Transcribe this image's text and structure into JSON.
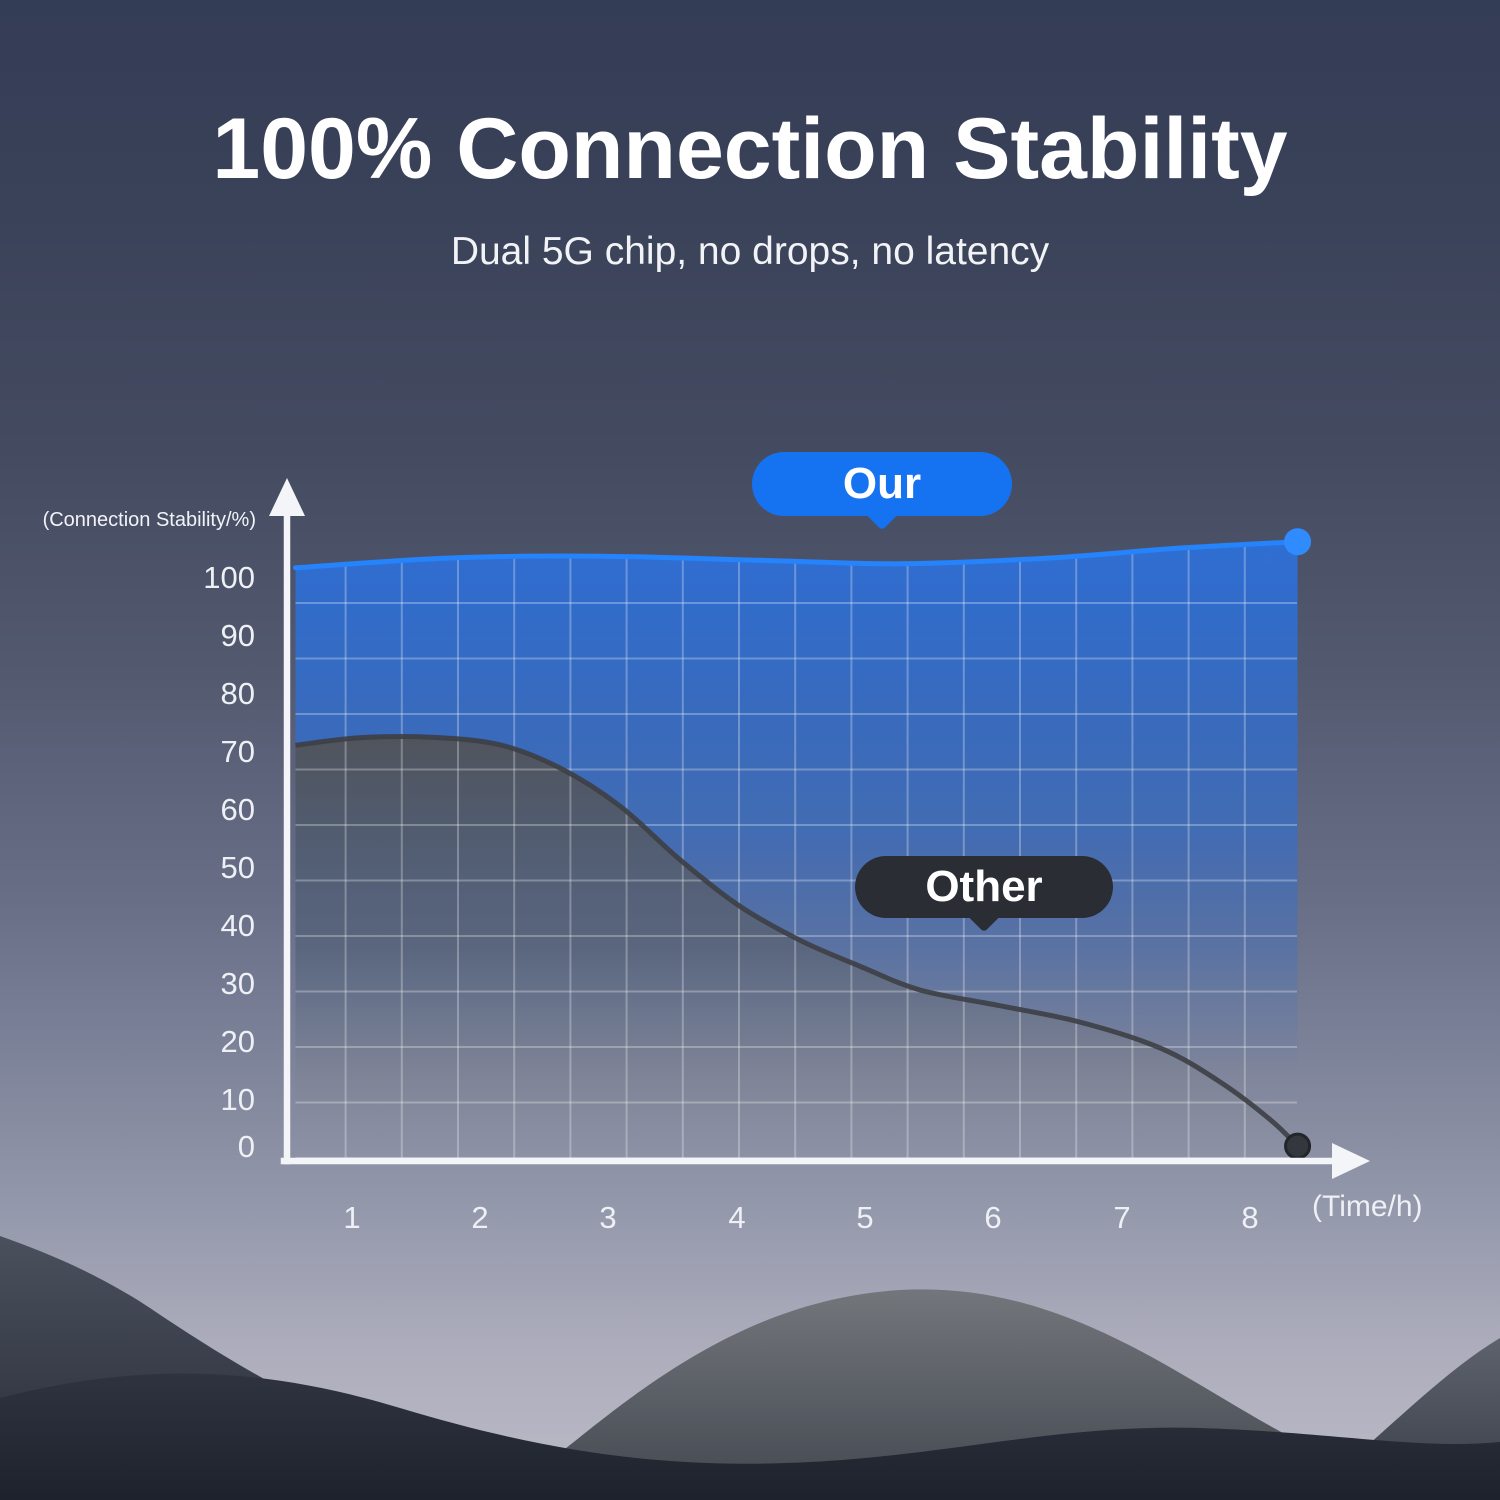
{
  "header": {
    "title": "100% Connection Stability",
    "subtitle": "Dual 5G chip, no drops, no latency"
  },
  "chart_data": {
    "type": "area",
    "title": "100% Connection Stability",
    "xlabel": "(Time/h)",
    "ylabel": "(Connection Stability/%)",
    "x_ticks": [
      "1",
      "2",
      "3",
      "4",
      "5",
      "6",
      "7",
      "8"
    ],
    "y_ticks": [
      "100",
      "90",
      "80",
      "70",
      "60",
      "50",
      "40",
      "30",
      "20",
      "10",
      "0"
    ],
    "xlim": [
      0.55,
      8.75
    ],
    "ylim": [
      0,
      112
    ],
    "grid": true,
    "grid_color": "#ffffff",
    "axis_color": "#f4f5f8",
    "series": [
      {
        "name": "Our",
        "line_color": "#2583fb",
        "fill_color": "#2e6fd6",
        "marker_color": "#2f8bfe",
        "points": [
          [
            0.56,
            102.1
          ],
          [
            1.76,
            103.8
          ],
          [
            2.93,
            104.1
          ],
          [
            4.18,
            103.4
          ],
          [
            5.27,
            102.8
          ],
          [
            6.44,
            103.8
          ],
          [
            7.45,
            105.5
          ],
          [
            8.37,
            106.6
          ]
        ]
      },
      {
        "name": "Other",
        "line_color": "#3d3f45",
        "fill_color": "#515359",
        "marker_color": "#34373d",
        "points": [
          [
            0.56,
            71.5
          ],
          [
            1.06,
            72.8
          ],
          [
            1.61,
            72.9
          ],
          [
            2.15,
            71.6
          ],
          [
            2.62,
            67.6
          ],
          [
            3.09,
            61.0
          ],
          [
            3.56,
            51.7
          ],
          [
            4.02,
            43.8
          ],
          [
            4.49,
            37.9
          ],
          [
            4.96,
            33.4
          ],
          [
            5.43,
            29.3
          ],
          [
            6.05,
            26.6
          ],
          [
            6.67,
            23.8
          ],
          [
            7.3,
            19.3
          ],
          [
            7.77,
            13.4
          ],
          [
            8.16,
            6.9
          ],
          [
            8.37,
            2.4
          ]
        ]
      }
    ],
    "legend_badges": [
      {
        "label": "Our",
        "color": "#1573f2"
      },
      {
        "label": "Other",
        "color": "#2a2d34"
      }
    ]
  }
}
